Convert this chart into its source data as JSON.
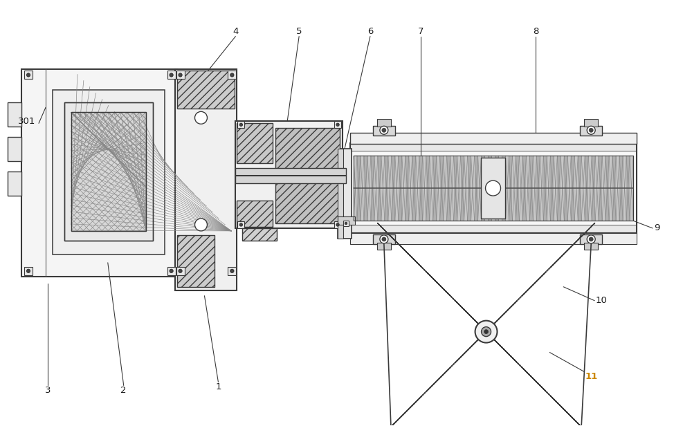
{
  "bg_color": "#ffffff",
  "line_color": "#3a3a3a",
  "figsize": [
    10.0,
    6.16
  ],
  "dpi": 100,
  "label_color": "#1a1a1a",
  "label_11_color": "#cc8800",
  "hatch_color": "#666666"
}
